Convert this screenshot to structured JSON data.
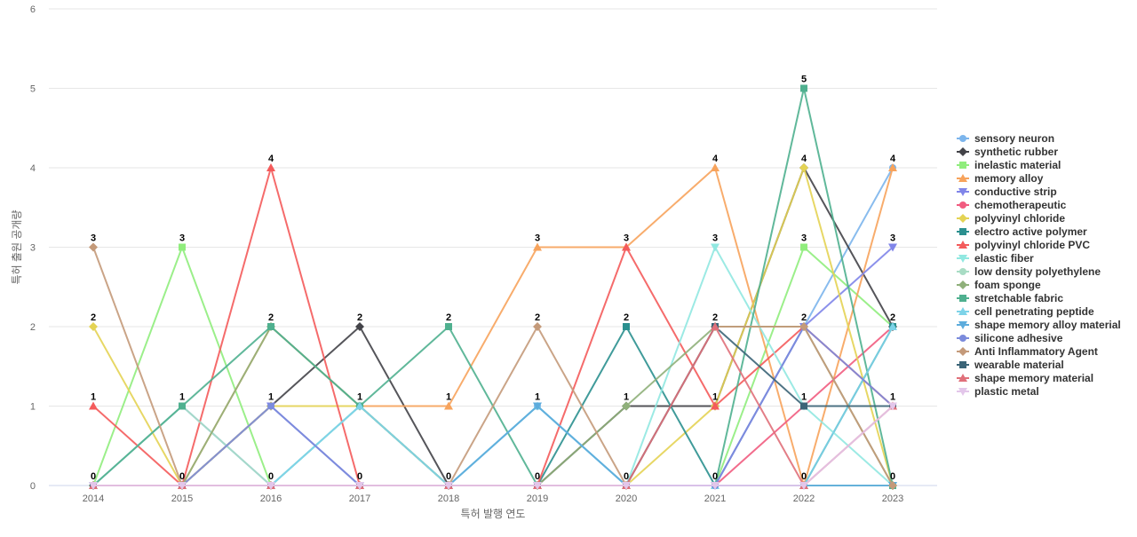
{
  "chart_data": {
    "type": "line",
    "xlabel": "특허 발행 연도",
    "ylabel": "특허 출원 공개량",
    "categories": [
      "2014",
      "2015",
      "2016",
      "2017",
      "2018",
      "2019",
      "2020",
      "2021",
      "2022",
      "2023"
    ],
    "ylim": [
      0,
      6
    ],
    "yticks": [
      0,
      1,
      2,
      3,
      4,
      5,
      6
    ],
    "grid": "horizontal",
    "legend_position": "right",
    "series": [
      {
        "name": "sensory neuron",
        "color": "#7cb5ec",
        "marker": "circle",
        "values": [
          0,
          1,
          0,
          0,
          0,
          1,
          0,
          0,
          2,
          4
        ]
      },
      {
        "name": "synthetic rubber",
        "color": "#434348",
        "marker": "diamond",
        "values": [
          0,
          0,
          1,
          2,
          0,
          0,
          1,
          1,
          4,
          2
        ]
      },
      {
        "name": "inelastic material",
        "color": "#90ed7d",
        "marker": "square",
        "values": [
          0,
          3,
          0,
          0,
          0,
          0,
          0,
          0,
          3,
          2
        ]
      },
      {
        "name": "memory alloy",
        "color": "#f7a35c",
        "marker": "triangle",
        "values": [
          0,
          0,
          2,
          1,
          1,
          3,
          3,
          4,
          0,
          4
        ]
      },
      {
        "name": "conductive strip",
        "color": "#8085e9",
        "marker": "triangle-down",
        "values": [
          0,
          0,
          1,
          0,
          0,
          0,
          0,
          0,
          2,
          3
        ]
      },
      {
        "name": "chemotherapeutic",
        "color": "#f15c80",
        "marker": "circle",
        "values": [
          0,
          0,
          0,
          0,
          0,
          0,
          0,
          0,
          1,
          2
        ]
      },
      {
        "name": "polyvinyl chloride",
        "color": "#e4d354",
        "marker": "diamond",
        "values": [
          2,
          0,
          1,
          1,
          0,
          0,
          0,
          1,
          4,
          0
        ]
      },
      {
        "name": "electro active polymer",
        "color": "#2b908f",
        "marker": "square",
        "values": [
          0,
          0,
          0,
          1,
          0,
          0,
          2,
          0,
          0,
          2
        ]
      },
      {
        "name": "polyvinyl chloride PVC",
        "color": "#f45b5b",
        "marker": "triangle",
        "values": [
          1,
          0,
          4,
          0,
          0,
          0,
          3,
          1,
          2,
          1
        ]
      },
      {
        "name": "elastic fiber",
        "color": "#91e8e1",
        "marker": "triangle-down",
        "values": [
          0,
          0,
          0,
          1,
          0,
          0,
          0,
          3,
          1,
          0
        ]
      },
      {
        "name": "low density polyethylene",
        "color": "#a8dcc4",
        "marker": "circle",
        "values": [
          0,
          1,
          0,
          0,
          0,
          0,
          0,
          0,
          0,
          0
        ]
      },
      {
        "name": "foam sponge",
        "color": "#8fb07a",
        "marker": "diamond",
        "values": [
          0,
          0,
          2,
          1,
          0,
          0,
          1,
          2,
          2,
          0
        ]
      },
      {
        "name": "stretchable fabric",
        "color": "#4fb08f",
        "marker": "square",
        "values": [
          0,
          1,
          2,
          1,
          2,
          0,
          0,
          0,
          5,
          0
        ]
      },
      {
        "name": "cell penetrating peptide",
        "color": "#7dd3e8",
        "marker": "triangle",
        "values": [
          0,
          0,
          0,
          1,
          0,
          1,
          0,
          0,
          0,
          2
        ]
      },
      {
        "name": "shape memory alloy material",
        "color": "#5dacdc",
        "marker": "triangle-down",
        "values": [
          0,
          0,
          0,
          0,
          0,
          1,
          0,
          0,
          0,
          0
        ]
      },
      {
        "name": "silicone adhesive",
        "color": "#7b8bdc",
        "marker": "circle",
        "values": [
          0,
          0,
          1,
          0,
          0,
          0,
          0,
          0,
          2,
          1
        ]
      },
      {
        "name": "Anti Inflammatory Agent",
        "color": "#c49a7a",
        "marker": "diamond",
        "values": [
          3,
          0,
          0,
          0,
          0,
          2,
          0,
          2,
          2,
          0
        ]
      },
      {
        "name": "wearable material",
        "color": "#3b6477",
        "marker": "square",
        "values": [
          0,
          0,
          0,
          0,
          0,
          0,
          0,
          2,
          1,
          1
        ]
      },
      {
        "name": "shape memory material",
        "color": "#e0707a",
        "marker": "triangle",
        "values": [
          0,
          0,
          0,
          0,
          0,
          0,
          0,
          2,
          0,
          1
        ]
      },
      {
        "name": "plastic metal",
        "color": "#e3c6ea",
        "marker": "triangle-down",
        "values": [
          0,
          0,
          0,
          0,
          0,
          0,
          0,
          0,
          0,
          1
        ]
      }
    ],
    "data_labels": [
      {
        "x": "2014",
        "y": 3
      },
      {
        "x": "2014",
        "y": 2
      },
      {
        "x": "2014",
        "y": 1
      },
      {
        "x": "2014",
        "y": 0
      },
      {
        "x": "2015",
        "y": 3
      },
      {
        "x": "2015",
        "y": 1
      },
      {
        "x": "2015",
        "y": 0
      },
      {
        "x": "2016",
        "y": 4
      },
      {
        "x": "2016",
        "y": 2
      },
      {
        "x": "2016",
        "y": 1
      },
      {
        "x": "2016",
        "y": 0
      },
      {
        "x": "2017",
        "y": 2
      },
      {
        "x": "2017",
        "y": 1
      },
      {
        "x": "2017",
        "y": 0
      },
      {
        "x": "2018",
        "y": 2
      },
      {
        "x": "2018",
        "y": 1
      },
      {
        "x": "2018",
        "y": 0
      },
      {
        "x": "2019",
        "y": 3
      },
      {
        "x": "2019",
        "y": 2
      },
      {
        "x": "2019",
        "y": 1
      },
      {
        "x": "2019",
        "y": 0
      },
      {
        "x": "2020",
        "y": 3
      },
      {
        "x": "2020",
        "y": 2
      },
      {
        "x": "2020",
        "y": 1
      },
      {
        "x": "2020",
        "y": 0
      },
      {
        "x": "2021",
        "y": 4
      },
      {
        "x": "2021",
        "y": 3
      },
      {
        "x": "2021",
        "y": 2
      },
      {
        "x": "2021",
        "y": 1
      },
      {
        "x": "2021",
        "y": 0
      },
      {
        "x": "2022",
        "y": 5
      },
      {
        "x": "2022",
        "y": 4
      },
      {
        "x": "2022",
        "y": 3
      },
      {
        "x": "2022",
        "y": 2
      },
      {
        "x": "2022",
        "y": 1
      },
      {
        "x": "2022",
        "y": 0
      },
      {
        "x": "2023",
        "y": 4
      },
      {
        "x": "2023",
        "y": 3
      },
      {
        "x": "2023",
        "y": 2
      },
      {
        "x": "2023",
        "y": 1
      },
      {
        "x": "2023",
        "y": 0
      }
    ]
  }
}
